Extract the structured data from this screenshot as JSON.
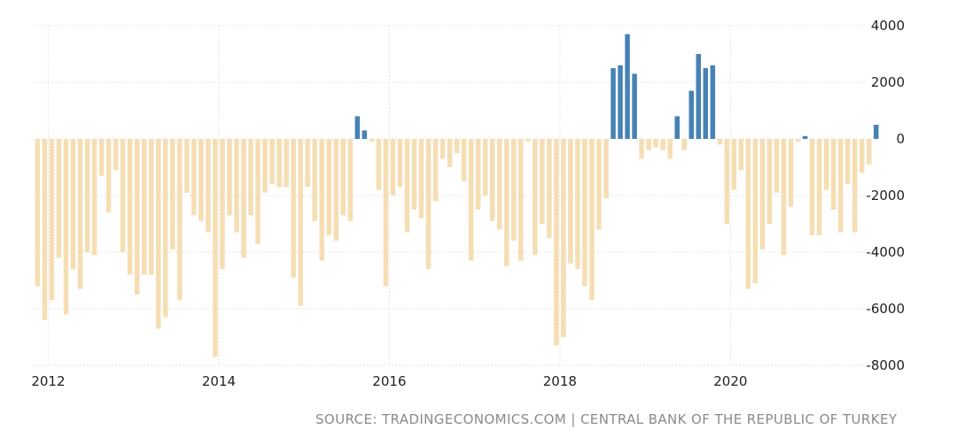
{
  "chart_data": {
    "type": "bar",
    "title": "",
    "xlabel": "",
    "ylabel": "",
    "ylim": [
      -8000,
      4000
    ],
    "yticks": [
      "4000",
      "2000",
      "0",
      "-2000",
      "-4000",
      "-6000",
      "-8000"
    ],
    "ytick_values": [
      4000,
      2000,
      0,
      -2000,
      -4000,
      -6000,
      -8000
    ],
    "xticks": [
      "2012",
      "2014",
      "2016",
      "2018",
      "2020"
    ],
    "xtick_values": [
      2012,
      2014,
      2016,
      2018,
      2020
    ],
    "start_year": 2011,
    "start_month": 11,
    "positive_color": "#4682b4",
    "negative_color": "#f5deb3",
    "grid": true,
    "values": [
      -5200,
      -6400,
      -5700,
      -4200,
      -6200,
      -4600,
      -5300,
      -4000,
      -4100,
      -1300,
      -2600,
      -1100,
      -4000,
      -4800,
      -5500,
      -4800,
      -4800,
      -6700,
      -6300,
      -3900,
      -5700,
      -1900,
      -2700,
      -2900,
      -3300,
      -7700,
      -4600,
      -2700,
      -3300,
      -4200,
      -2700,
      -3700,
      -1900,
      -1600,
      -1700,
      -1700,
      -4900,
      -5900,
      -1700,
      -2900,
      -4300,
      -3400,
      -3600,
      -2700,
      -2900,
      800,
      300,
      -100,
      -1800,
      -5200,
      -2000,
      -1700,
      -3300,
      -2500,
      -2800,
      -4600,
      -2200,
      -700,
      -1000,
      -500,
      -1500,
      -4300,
      -2500,
      -2000,
      -2900,
      -3200,
      -4500,
      -3600,
      -4300,
      -100,
      -4100,
      -3000,
      -3500,
      -7300,
      -7000,
      -4400,
      -4600,
      -5200,
      -5700,
      -3200,
      -2100,
      2500,
      2600,
      3700,
      2300,
      -700,
      -400,
      -300,
      -400,
      -700,
      800,
      -400,
      1700,
      3000,
      2500,
      2600,
      -200,
      -3000,
      -1800,
      -1100,
      -5300,
      -5100,
      -3900,
      -3000,
      -1900,
      -4100,
      -2400,
      -100,
      100,
      -3400,
      -3400,
      -1800,
      -2500,
      -3300,
      -1600,
      -3300,
      -1200,
      -900,
      500
    ]
  },
  "source": "SOURCE: TRADINGECONOMICS.COM | CENTRAL BANK OF THE REPUBLIC OF TURKEY"
}
